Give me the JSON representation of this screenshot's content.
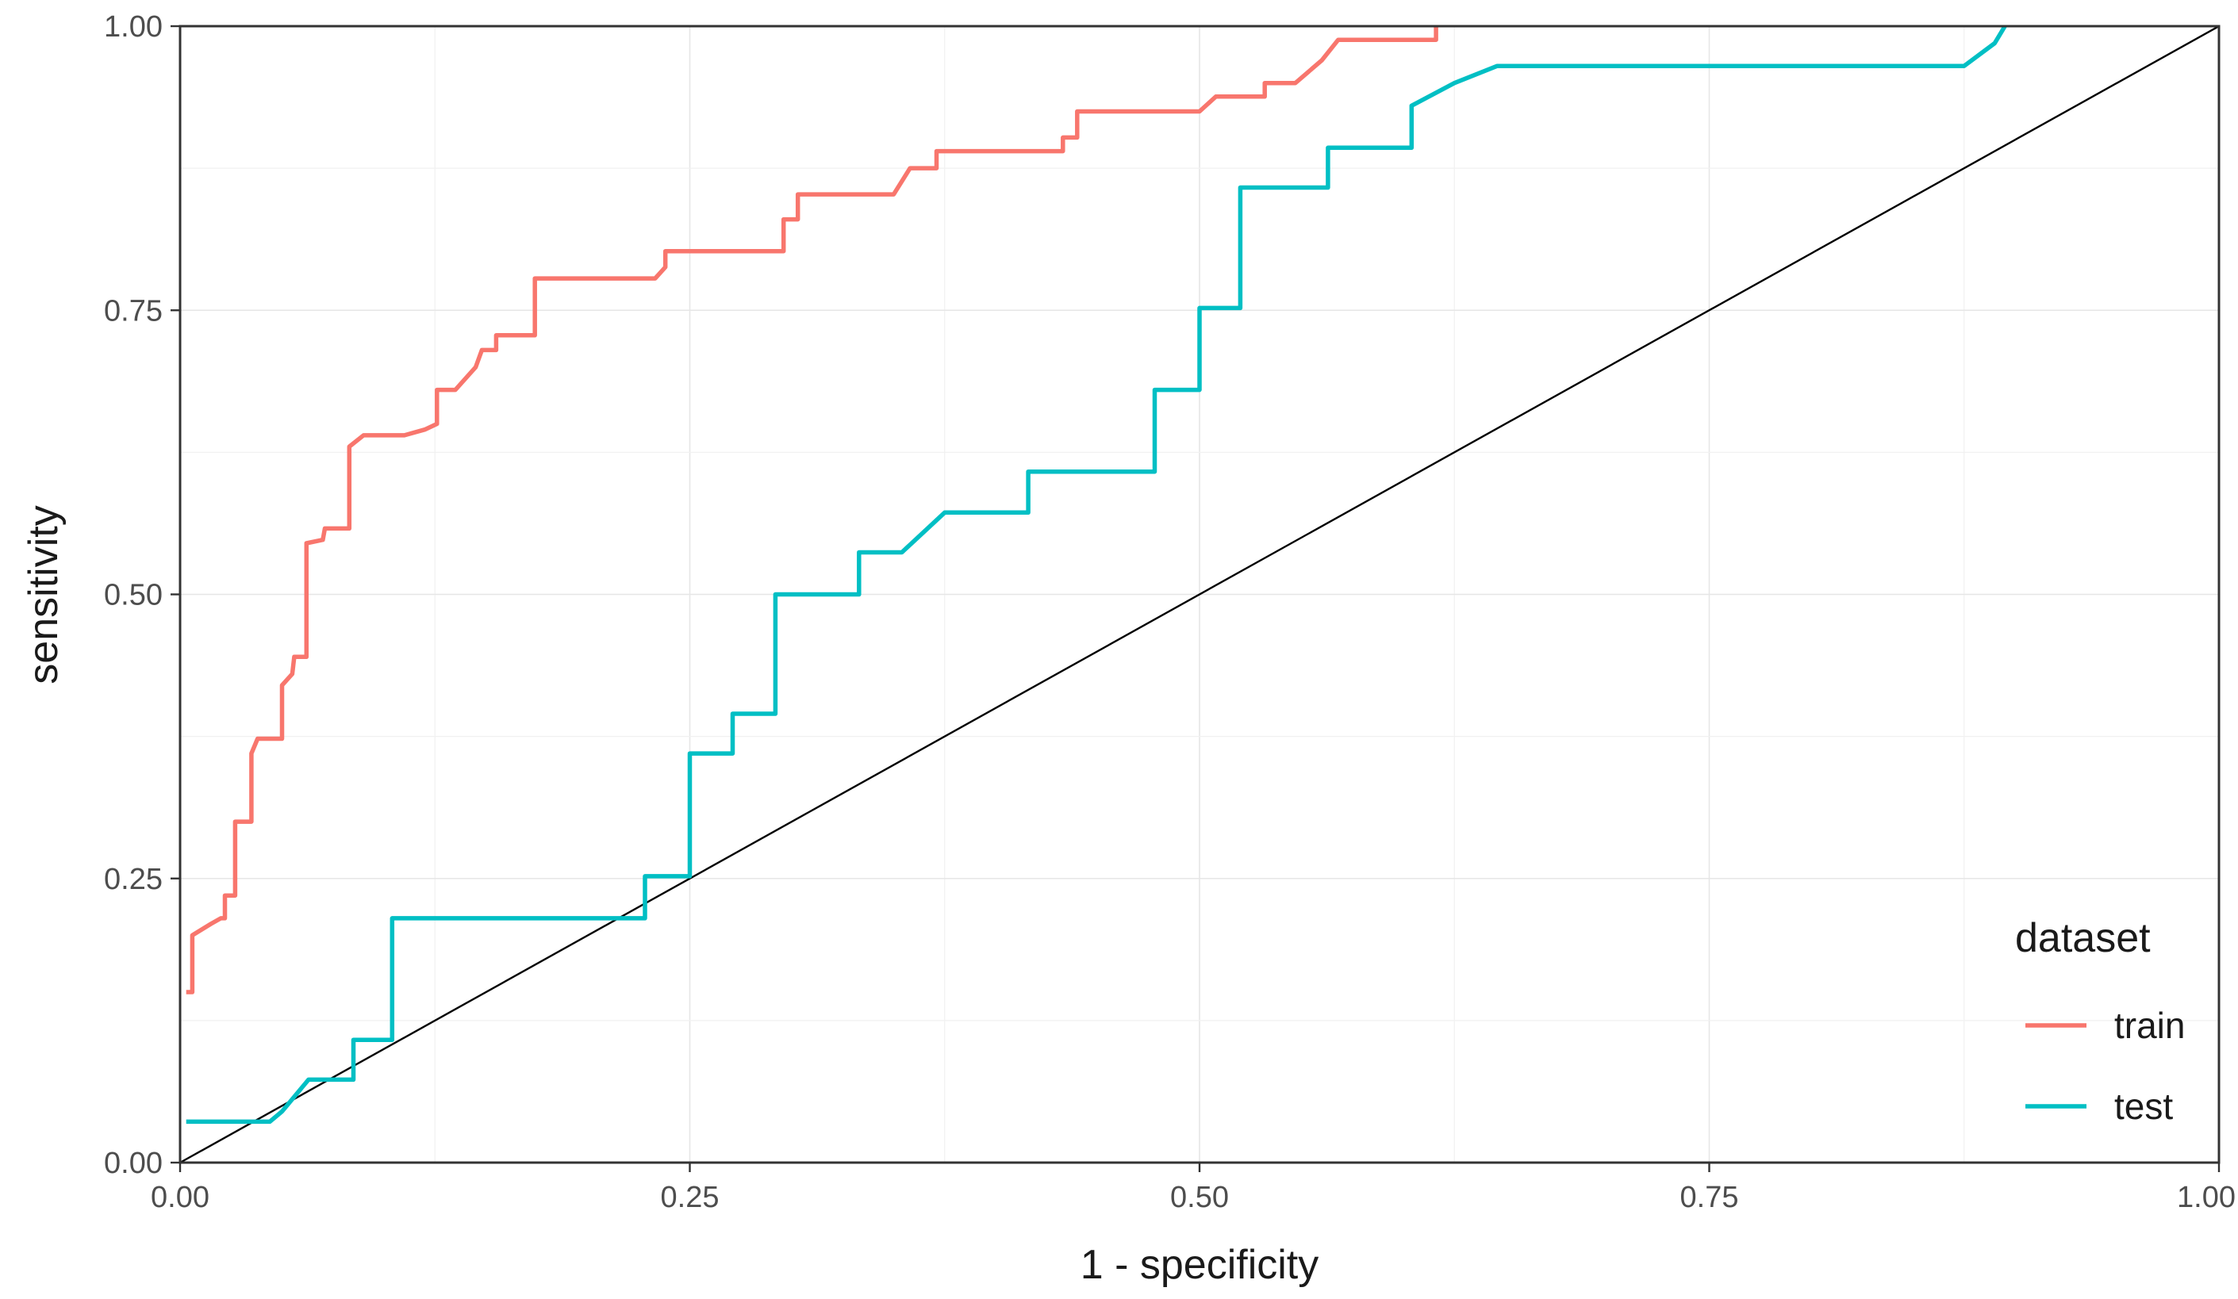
{
  "chart_data": {
    "type": "line",
    "title": "",
    "xlabel": "1 - specificity",
    "ylabel": "sensitivity",
    "xlim": [
      0,
      1
    ],
    "ylim": [
      0,
      1
    ],
    "xticks": [
      "0.00",
      "0.25",
      "0.50",
      "0.75",
      "1.00"
    ],
    "yticks": [
      "0.00",
      "0.25",
      "0.50",
      "0.75",
      "1.00"
    ],
    "grid": true,
    "legend": {
      "title": "dataset",
      "placement": "bottom-right"
    },
    "reference_line": {
      "from": [
        0,
        0
      ],
      "to": [
        1,
        1
      ],
      "color": "#000000"
    },
    "series": [
      {
        "name": "train",
        "color": "#f8766d",
        "points": [
          [
            0.003,
            0.15
          ],
          [
            0.006,
            0.15
          ],
          [
            0.006,
            0.2
          ],
          [
            0.015,
            0.21
          ],
          [
            0.02,
            0.215
          ],
          [
            0.022,
            0.215
          ],
          [
            0.022,
            0.235
          ],
          [
            0.027,
            0.235
          ],
          [
            0.027,
            0.3
          ],
          [
            0.035,
            0.3
          ],
          [
            0.035,
            0.36
          ],
          [
            0.038,
            0.373
          ],
          [
            0.05,
            0.373
          ],
          [
            0.05,
            0.42
          ],
          [
            0.055,
            0.43
          ],
          [
            0.056,
            0.445
          ],
          [
            0.062,
            0.445
          ],
          [
            0.062,
            0.545
          ],
          [
            0.07,
            0.548
          ],
          [
            0.071,
            0.558
          ],
          [
            0.083,
            0.558
          ],
          [
            0.083,
            0.63
          ],
          [
            0.09,
            0.64
          ],
          [
            0.11,
            0.64
          ],
          [
            0.12,
            0.645
          ],
          [
            0.126,
            0.65
          ],
          [
            0.126,
            0.68
          ],
          [
            0.135,
            0.68
          ],
          [
            0.145,
            0.7
          ],
          [
            0.148,
            0.715
          ],
          [
            0.155,
            0.715
          ],
          [
            0.155,
            0.728
          ],
          [
            0.174,
            0.728
          ],
          [
            0.174,
            0.778
          ],
          [
            0.233,
            0.778
          ],
          [
            0.238,
            0.788
          ],
          [
            0.238,
            0.802
          ],
          [
            0.296,
            0.802
          ],
          [
            0.296,
            0.83
          ],
          [
            0.303,
            0.83
          ],
          [
            0.303,
            0.852
          ],
          [
            0.35,
            0.852
          ],
          [
            0.358,
            0.875
          ],
          [
            0.371,
            0.875
          ],
          [
            0.371,
            0.89
          ],
          [
            0.433,
            0.89
          ],
          [
            0.433,
            0.902
          ],
          [
            0.44,
            0.902
          ],
          [
            0.44,
            0.925
          ],
          [
            0.5,
            0.925
          ],
          [
            0.508,
            0.938
          ],
          [
            0.532,
            0.938
          ],
          [
            0.532,
            0.95
          ],
          [
            0.547,
            0.95
          ],
          [
            0.56,
            0.97
          ],
          [
            0.568,
            0.988
          ],
          [
            0.616,
            0.988
          ],
          [
            0.616,
            1.0
          ]
        ]
      },
      {
        "name": "test",
        "color": "#00bfc4",
        "points": [
          [
            0.003,
            0.036
          ],
          [
            0.044,
            0.036
          ],
          [
            0.05,
            0.045
          ],
          [
            0.063,
            0.073
          ],
          [
            0.085,
            0.073
          ],
          [
            0.085,
            0.108
          ],
          [
            0.104,
            0.108
          ],
          [
            0.104,
            0.215
          ],
          [
            0.228,
            0.215
          ],
          [
            0.228,
            0.252
          ],
          [
            0.25,
            0.252
          ],
          [
            0.25,
            0.36
          ],
          [
            0.271,
            0.36
          ],
          [
            0.271,
            0.395
          ],
          [
            0.292,
            0.395
          ],
          [
            0.292,
            0.5
          ],
          [
            0.333,
            0.5
          ],
          [
            0.333,
            0.537
          ],
          [
            0.354,
            0.537
          ],
          [
            0.375,
            0.572
          ],
          [
            0.416,
            0.572
          ],
          [
            0.416,
            0.608
          ],
          [
            0.478,
            0.608
          ],
          [
            0.478,
            0.68
          ],
          [
            0.5,
            0.68
          ],
          [
            0.5,
            0.752
          ],
          [
            0.52,
            0.752
          ],
          [
            0.52,
            0.858
          ],
          [
            0.563,
            0.858
          ],
          [
            0.563,
            0.893
          ],
          [
            0.604,
            0.893
          ],
          [
            0.604,
            0.93
          ],
          [
            0.625,
            0.95
          ],
          [
            0.646,
            0.965
          ],
          [
            0.875,
            0.965
          ],
          [
            0.89,
            0.985
          ],
          [
            0.895,
            1.0
          ]
        ]
      }
    ]
  }
}
